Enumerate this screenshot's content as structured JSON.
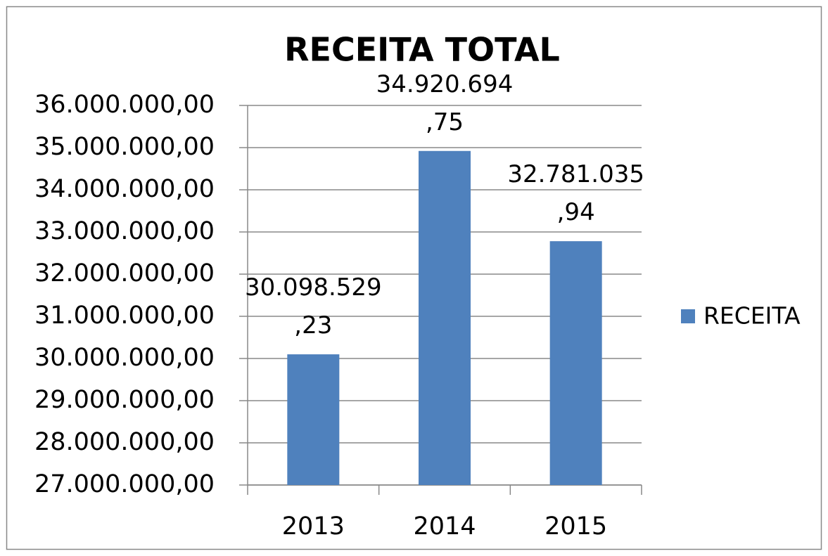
{
  "chart_data": {
    "type": "bar",
    "title": "RECEITA TOTAL",
    "categories": [
      "2013",
      "2014",
      "2015"
    ],
    "series": [
      {
        "name": "RECEITA",
        "color": "#4f81bd",
        "values": [
          30098529.23,
          34920694.75,
          32781035.94
        ],
        "value_labels": [
          "30.098.529,23",
          "34.920.694,75",
          "32.781.035,94"
        ]
      }
    ],
    "ylim": [
      27000000,
      36000000
    ],
    "yticks": [
      {
        "value": 27000000,
        "label": "27.000.000,00"
      },
      {
        "value": 28000000,
        "label": "28.000.000,00"
      },
      {
        "value": 29000000,
        "label": "29.000.000,00"
      },
      {
        "value": 30000000,
        "label": "30.000.000,00"
      },
      {
        "value": 31000000,
        "label": "31.000.000,00"
      },
      {
        "value": 32000000,
        "label": "32.000.000,00"
      },
      {
        "value": 33000000,
        "label": "33.000.000,00"
      },
      {
        "value": 34000000,
        "label": "34.000.000,00"
      },
      {
        "value": 35000000,
        "label": "35.000.000,00"
      },
      {
        "value": 36000000,
        "label": "36.000.000,00"
      }
    ],
    "grid": true,
    "legend": "right"
  }
}
